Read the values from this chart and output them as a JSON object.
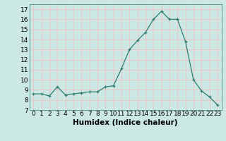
{
  "x": [
    0,
    1,
    2,
    3,
    4,
    5,
    6,
    7,
    8,
    9,
    10,
    11,
    12,
    13,
    14,
    15,
    16,
    17,
    18,
    19,
    20,
    21,
    22,
    23
  ],
  "y": [
    8.6,
    8.6,
    8.4,
    9.3,
    8.5,
    8.6,
    8.7,
    8.8,
    8.8,
    9.3,
    9.4,
    11.1,
    13.0,
    13.9,
    14.7,
    16.0,
    16.8,
    16.0,
    16.0,
    13.8,
    10.0,
    8.9,
    8.3,
    7.5
  ],
  "line_color": "#2e7d6e",
  "marker": "+",
  "bg_color": "#cce8e4",
  "grid_color": "#e8c8c8",
  "xlabel": "Humidex (Indice chaleur)",
  "ylim": [
    7,
    17.5
  ],
  "xlim": [
    -0.5,
    23.5
  ],
  "yticks": [
    7,
    8,
    9,
    10,
    11,
    12,
    13,
    14,
    15,
    16,
    17
  ],
  "xticks": [
    0,
    1,
    2,
    3,
    4,
    5,
    6,
    7,
    8,
    9,
    10,
    11,
    12,
    13,
    14,
    15,
    16,
    17,
    18,
    19,
    20,
    21,
    22,
    23
  ],
  "xlabel_fontsize": 7.5,
  "tick_fontsize": 6.5
}
